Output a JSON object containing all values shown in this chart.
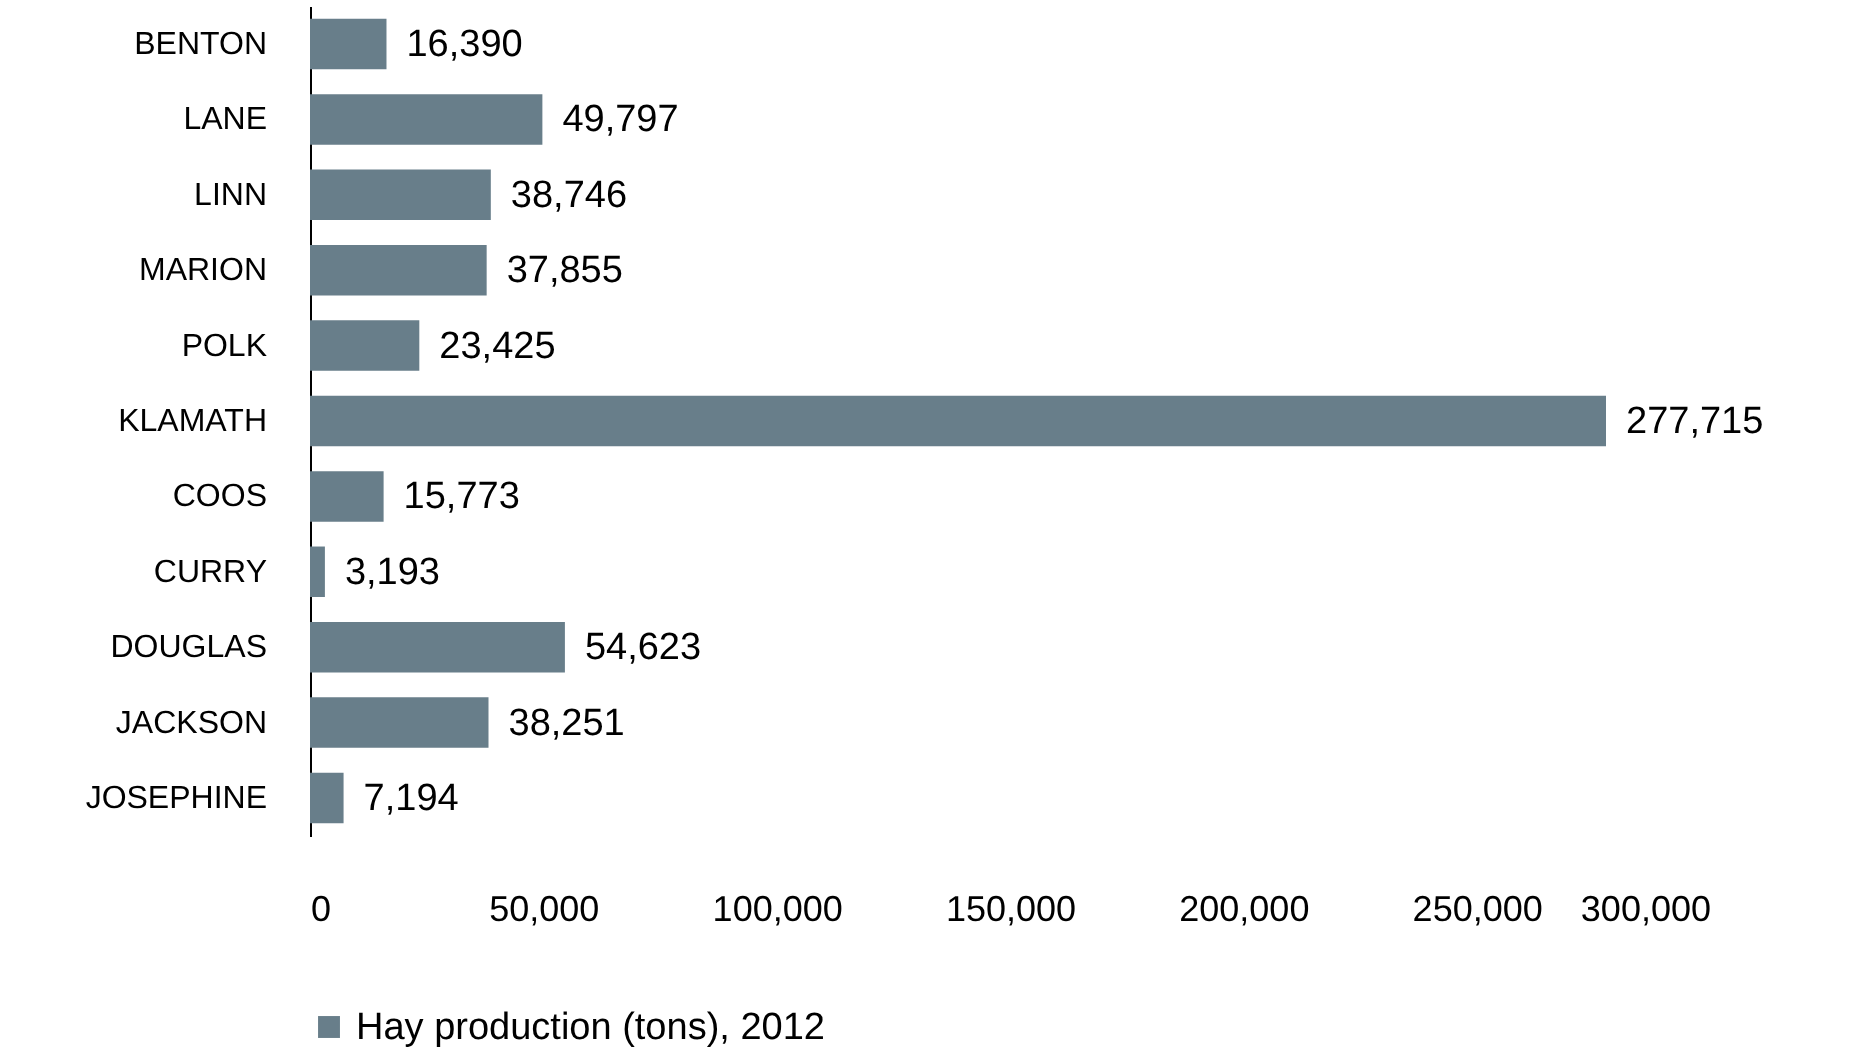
{
  "chart_data": {
    "type": "bar",
    "orientation": "horizontal",
    "categories": [
      "BENTON",
      "LANE",
      "LINN",
      "MARION",
      "POLK",
      "KLAMATH",
      "COOS",
      "CURRY",
      "DOUGLAS",
      "JACKSON",
      "JOSEPHINE"
    ],
    "series": [
      {
        "name": "Hay production (tons), 2012",
        "color": "#687e8a",
        "values": [
          16390,
          49797,
          38746,
          37855,
          23425,
          277715,
          15773,
          3193,
          54623,
          38251,
          7194
        ],
        "value_labels": [
          "16,390",
          "49,797",
          "38,746",
          "37,855",
          "23,425",
          "277,715",
          "15,773",
          "3,193",
          "54,623",
          "38,251",
          "7,194"
        ]
      }
    ],
    "xlim": [
      0,
      300000
    ],
    "xticks": [
      0,
      {
        "value": 50000,
        "label": "50,000"
      },
      {
        "value": 100000,
        "label": "100,000"
      },
      {
        "value": 150000,
        "label": "150,000"
      },
      {
        "value": 200000,
        "label": "200,000"
      },
      {
        "value": 250000,
        "label": "250,000"
      },
      {
        "value": 300000,
        "label": "300,000"
      }
    ],
    "grid": false,
    "legend": "bottom"
  }
}
